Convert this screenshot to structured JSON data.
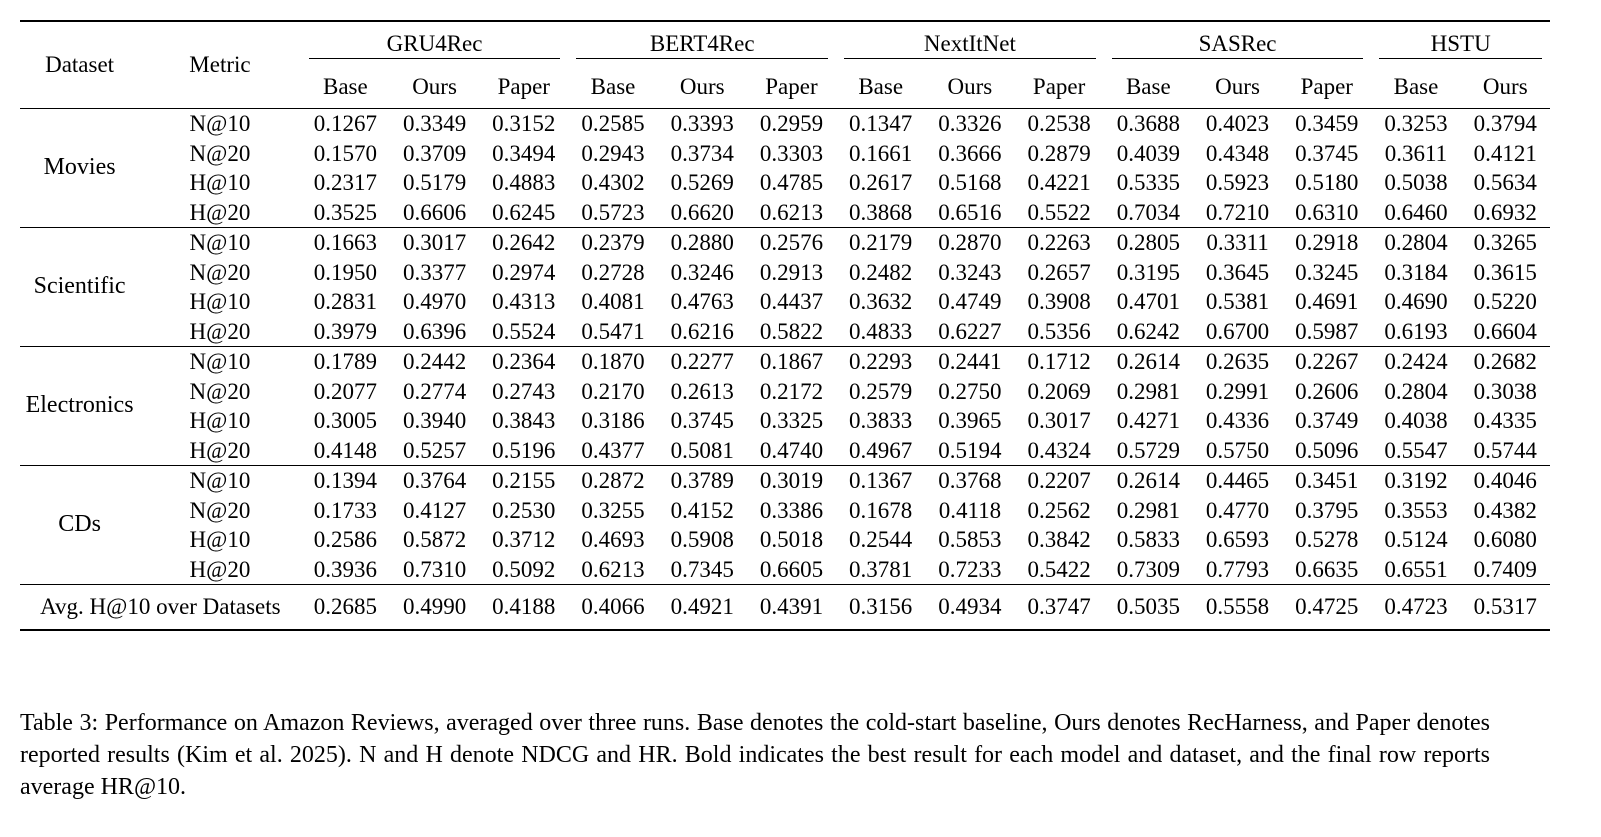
{
  "table": {
    "header": {
      "dataset": "Dataset",
      "metric": "Metric",
      "models": [
        "GRU4Rec",
        "BERT4Rec",
        "NextItNet",
        "SASRec",
        "HSTU"
      ],
      "subcolumns": {
        "GRU4Rec": [
          "Base",
          "Ours",
          "Paper"
        ],
        "BERT4Rec": [
          "Base",
          "Ours",
          "Paper"
        ],
        "NextItNet": [
          "Base",
          "Ours",
          "Paper"
        ],
        "SASRec": [
          "Base",
          "Ours",
          "Paper"
        ],
        "HSTU": [
          "Base",
          "Ours"
        ]
      }
    },
    "groups": [
      {
        "dataset": "Movies",
        "rows": [
          {
            "metric": "N@10",
            "values": [
              "0.1267",
              "0.3349",
              "0.3152",
              "0.2585",
              "0.3393",
              "0.2959",
              "0.1347",
              "0.3326",
              "0.2538",
              "0.3688",
              "0.4023",
              "0.3459",
              "0.3253",
              "0.3794"
            ]
          },
          {
            "metric": "N@20",
            "values": [
              "0.1570",
              "0.3709",
              "0.3494",
              "0.2943",
              "0.3734",
              "0.3303",
              "0.1661",
              "0.3666",
              "0.2879",
              "0.4039",
              "0.4348",
              "0.3745",
              "0.3611",
              "0.4121"
            ]
          },
          {
            "metric": "H@10",
            "values": [
              "0.2317",
              "0.5179",
              "0.4883",
              "0.4302",
              "0.5269",
              "0.4785",
              "0.2617",
              "0.5168",
              "0.4221",
              "0.5335",
              "0.5923",
              "0.5180",
              "0.5038",
              "0.5634"
            ]
          },
          {
            "metric": "H@20",
            "values": [
              "0.3525",
              "0.6606",
              "0.6245",
              "0.5723",
              "0.6620",
              "0.6213",
              "0.3868",
              "0.6516",
              "0.5522",
              "0.7034",
              "0.7210",
              "0.6310",
              "0.6460",
              "0.6932"
            ]
          }
        ]
      },
      {
        "dataset": "Scientific",
        "rows": [
          {
            "metric": "N@10",
            "values": [
              "0.1663",
              "0.3017",
              "0.2642",
              "0.2379",
              "0.2880",
              "0.2576",
              "0.2179",
              "0.2870",
              "0.2263",
              "0.2805",
              "0.3311",
              "0.2918",
              "0.2804",
              "0.3265"
            ]
          },
          {
            "metric": "N@20",
            "values": [
              "0.1950",
              "0.3377",
              "0.2974",
              "0.2728",
              "0.3246",
              "0.2913",
              "0.2482",
              "0.3243",
              "0.2657",
              "0.3195",
              "0.3645",
              "0.3245",
              "0.3184",
              "0.3615"
            ]
          },
          {
            "metric": "H@10",
            "values": [
              "0.2831",
              "0.4970",
              "0.4313",
              "0.4081",
              "0.4763",
              "0.4437",
              "0.3632",
              "0.4749",
              "0.3908",
              "0.4701",
              "0.5381",
              "0.4691",
              "0.4690",
              "0.5220"
            ]
          },
          {
            "metric": "H@20",
            "values": [
              "0.3979",
              "0.6396",
              "0.5524",
              "0.5471",
              "0.6216",
              "0.5822",
              "0.4833",
              "0.6227",
              "0.5356",
              "0.6242",
              "0.6700",
              "0.5987",
              "0.6193",
              "0.6604"
            ]
          }
        ]
      },
      {
        "dataset": "Electronics",
        "rows": [
          {
            "metric": "N@10",
            "values": [
              "0.1789",
              "0.2442",
              "0.2364",
              "0.1870",
              "0.2277",
              "0.1867",
              "0.2293",
              "0.2441",
              "0.1712",
              "0.2614",
              "0.2635",
              "0.2267",
              "0.2424",
              "0.2682"
            ]
          },
          {
            "metric": "N@20",
            "values": [
              "0.2077",
              "0.2774",
              "0.2743",
              "0.2170",
              "0.2613",
              "0.2172",
              "0.2579",
              "0.2750",
              "0.2069",
              "0.2981",
              "0.2991",
              "0.2606",
              "0.2804",
              "0.3038"
            ]
          },
          {
            "metric": "H@10",
            "values": [
              "0.3005",
              "0.3940",
              "0.3843",
              "0.3186",
              "0.3745",
              "0.3325",
              "0.3833",
              "0.3965",
              "0.3017",
              "0.4271",
              "0.4336",
              "0.3749",
              "0.4038",
              "0.4335"
            ]
          },
          {
            "metric": "H@20",
            "values": [
              "0.4148",
              "0.5257",
              "0.5196",
              "0.4377",
              "0.5081",
              "0.4740",
              "0.4967",
              "0.5194",
              "0.4324",
              "0.5729",
              "0.5750",
              "0.5096",
              "0.5547",
              "0.5744"
            ]
          }
        ]
      },
      {
        "dataset": "CDs",
        "rows": [
          {
            "metric": "N@10",
            "values": [
              "0.1394",
              "0.3764",
              "0.2155",
              "0.2872",
              "0.3789",
              "0.3019",
              "0.1367",
              "0.3768",
              "0.2207",
              "0.2614",
              "0.4465",
              "0.3451",
              "0.3192",
              "0.4046"
            ]
          },
          {
            "metric": "N@20",
            "values": [
              "0.1733",
              "0.4127",
              "0.2530",
              "0.3255",
              "0.4152",
              "0.3386",
              "0.1678",
              "0.4118",
              "0.2562",
              "0.2981",
              "0.4770",
              "0.3795",
              "0.3553",
              "0.4382"
            ]
          },
          {
            "metric": "H@10",
            "values": [
              "0.2586",
              "0.5872",
              "0.3712",
              "0.4693",
              "0.5908",
              "0.5018",
              "0.2544",
              "0.5853",
              "0.3842",
              "0.5833",
              "0.6593",
              "0.5278",
              "0.5124",
              "0.6080"
            ]
          },
          {
            "metric": "H@20",
            "values": [
              "0.3936",
              "0.7310",
              "0.5092",
              "0.6213",
              "0.7345",
              "0.6605",
              "0.3781",
              "0.7233",
              "0.5422",
              "0.7309",
              "0.7793",
              "0.6635",
              "0.6551",
              "0.7409"
            ]
          }
        ]
      }
    ],
    "avg_row": {
      "label": "Avg. H@10 over Datasets",
      "values": [
        "0.2685",
        "0.4990",
        "0.4188",
        "0.4066",
        "0.4921",
        "0.4391",
        "0.3156",
        "0.4934",
        "0.3747",
        "0.5035",
        "0.5558",
        "0.4725",
        "0.4723",
        "0.5317"
      ]
    },
    "bold_columns": [
      1,
      4,
      7,
      10,
      13
    ]
  },
  "caption": "Table 3: Performance on Amazon Reviews, averaged over three runs. Base denotes the cold-start baseline, Ours denotes RecHarness, and Paper denotes reported results (Kim et al. 2025). N and H denote NDCG and HR. Bold indicates the best result for each model and dataset, and the final row reports average HR@10."
}
